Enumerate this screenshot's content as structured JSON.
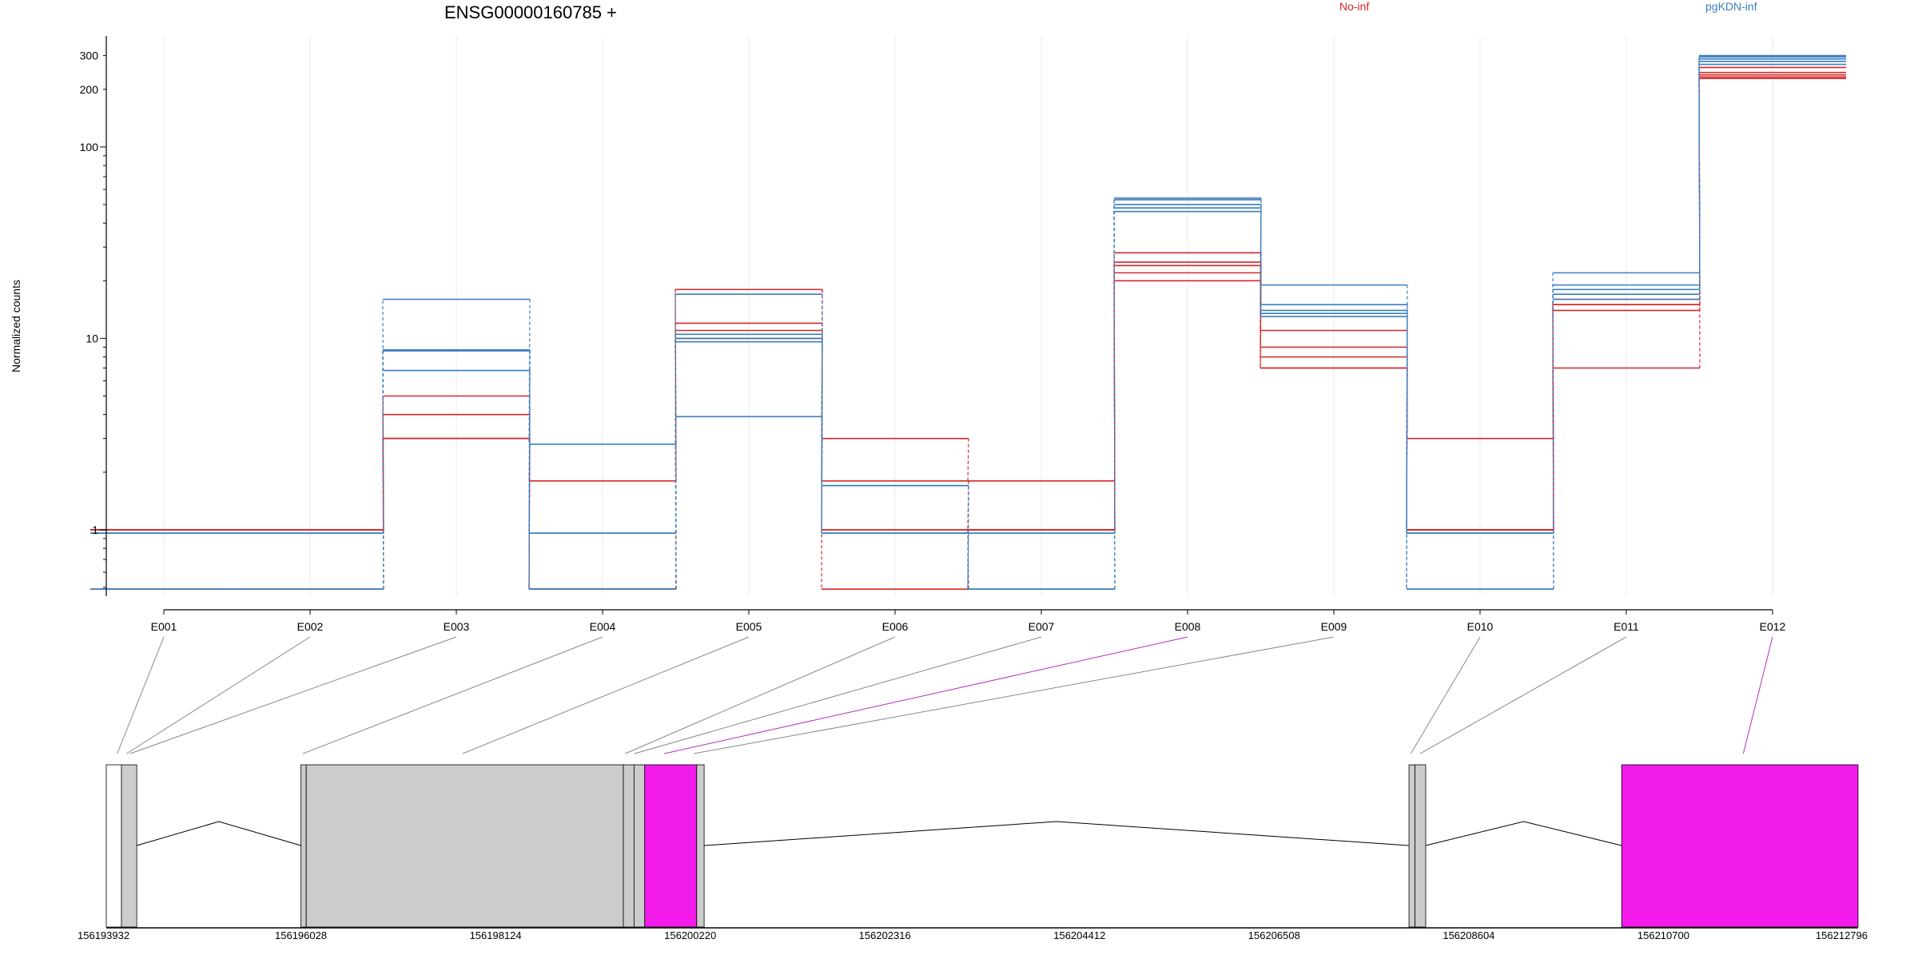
{
  "title": "ENSG00000160785 +",
  "legend": [
    {
      "label": "No-inf",
      "color": "#d62728"
    },
    {
      "label": "pgKDN-inf",
      "color": "#3a7dbf"
    }
  ],
  "colors": {
    "no_inf": "#d62728",
    "pgkdn_inf": "#3a7dbf",
    "exon_fill": "#cccccc",
    "highlight_fill": "#f21bea",
    "link": "#888888",
    "highlight_link": "#b52fc0"
  },
  "chart_data": {
    "type": "line",
    "ylabel": "Normalized counts",
    "yscale": "log",
    "ylim": [
      0.45,
      380
    ],
    "yticks": [
      {
        "value": 1,
        "label": "1"
      },
      {
        "value": 10,
        "label": "10"
      },
      {
        "value": 100,
        "label": "100"
      },
      {
        "value": 200,
        "label": "200"
      },
      {
        "value": 300,
        "label": "300"
      }
    ],
    "grid": true,
    "categories": [
      "E001",
      "E002",
      "E003",
      "E004",
      "E005",
      "E006",
      "E007",
      "E008",
      "E009",
      "E010",
      "E011",
      "E012"
    ],
    "series": [
      {
        "group": "No-inf",
        "values": [
          0.49,
          0.49,
          3.0,
          1.8,
          18,
          3.0,
          1.8,
          28,
          11,
          3.0,
          16,
          260
        ]
      },
      {
        "group": "No-inf",
        "values": [
          1.0,
          1.0,
          4.0,
          0.49,
          12,
          1.8,
          1.0,
          25,
          9,
          1.0,
          15,
          245
        ]
      },
      {
        "group": "No-inf",
        "values": [
          1.0,
          1.0,
          5.0,
          0.49,
          11,
          1.0,
          1.0,
          24,
          8,
          1.0,
          15,
          238
        ]
      },
      {
        "group": "No-inf",
        "values": [
          1.0,
          1.0,
          3.0,
          0.49,
          10,
          0.49,
          1.0,
          22,
          7,
          1.0,
          14,
          232
        ]
      },
      {
        "group": "No-inf",
        "values": [
          0.49,
          0.49,
          3.0,
          0.49,
          18,
          1.0,
          1.0,
          20,
          7,
          1.0,
          7,
          228
        ]
      },
      {
        "group": "pgKDN-inf",
        "values": [
          0.96,
          0.96,
          16,
          2.8,
          17,
          1.7,
          0.49,
          54,
          19,
          0.96,
          22,
          300
        ]
      },
      {
        "group": "pgKDN-inf",
        "values": [
          0.49,
          0.49,
          8.7,
          0.96,
          9.6,
          0.96,
          0.96,
          53,
          15,
          0.49,
          19,
          295
        ]
      },
      {
        "group": "pgKDN-inf",
        "values": [
          0.96,
          0.96,
          6.8,
          0.49,
          3.9,
          0.96,
          0.49,
          48,
          14,
          0.96,
          17,
          288
        ]
      },
      {
        "group": "pgKDN-inf",
        "values": [
          0.49,
          0.49,
          8.6,
          0.49,
          10.5,
          1.7,
          0.49,
          46,
          13,
          0.49,
          16,
          280
        ]
      },
      {
        "group": "pgKDN-inf",
        "values": [
          0.96,
          0.96,
          8.7,
          0.96,
          10,
          0.96,
          0.96,
          50,
          13.5,
          0.96,
          18,
          270
        ]
      }
    ]
  },
  "gene_model": {
    "coordinates": [
      "156193932",
      "156196028",
      "156198124",
      "156200220",
      "156202316",
      "156204412",
      "156206508",
      "156208604",
      "156210700",
      "156212796"
    ],
    "coord_range": [
      156193932,
      156212796
    ],
    "exons": [
      {
        "id": "E001",
        "start": 156193932,
        "end": 156194095,
        "highlight": false,
        "white": true
      },
      {
        "id": "E002",
        "start": 156194095,
        "end": 156194260,
        "highlight": false,
        "white": false
      },
      {
        "id": "E003",
        "start": 156196028,
        "end": 156196085,
        "highlight": false,
        "white": false
      },
      {
        "id": "E004",
        "start": 156196085,
        "end": 156199500,
        "highlight": false,
        "white": false
      },
      {
        "id": "E005",
        "start": 156199500,
        "end": 156199615,
        "highlight": false,
        "white": false
      },
      {
        "id": "E006",
        "start": 156199615,
        "end": 156199730,
        "highlight": false,
        "white": false
      },
      {
        "id": "E007",
        "start": 156199730,
        "end": 156200290,
        "highlight": true,
        "white": false
      },
      {
        "id": "E008",
        "start": 156200290,
        "end": 156200370,
        "highlight": false,
        "white": false
      },
      {
        "id": "E009",
        "start": 156207960,
        "end": 156208025,
        "highlight": false,
        "white": false
      },
      {
        "id": "E010",
        "start": 156208025,
        "end": 156208140,
        "highlight": false,
        "white": false
      },
      {
        "id": "E011",
        "start": 156210250,
        "end": 156212796,
        "highlight": true,
        "white": false
      }
    ],
    "links": [
      {
        "bin": "E001",
        "target": 156194050,
        "highlight": false
      },
      {
        "bin": "E002",
        "target": 156194150,
        "highlight": false
      },
      {
        "bin": "E003",
        "target": 156194190,
        "highlight": false
      },
      {
        "bin": "E004",
        "target": 156196050,
        "highlight": false
      },
      {
        "bin": "E005",
        "target": 156197770,
        "highlight": false
      },
      {
        "bin": "E006",
        "target": 156199520,
        "highlight": false
      },
      {
        "bin": "E007",
        "target": 156199620,
        "highlight": false
      },
      {
        "bin": "E008",
        "target": 156199940,
        "highlight": true
      },
      {
        "bin": "E009",
        "target": 156200260,
        "highlight": false
      },
      {
        "bin": "E010",
        "target": 156207980,
        "highlight": false
      },
      {
        "bin": "E011",
        "target": 156208080,
        "highlight": false
      },
      {
        "bin": "E012",
        "target": 156211560,
        "highlight": true
      }
    ]
  }
}
